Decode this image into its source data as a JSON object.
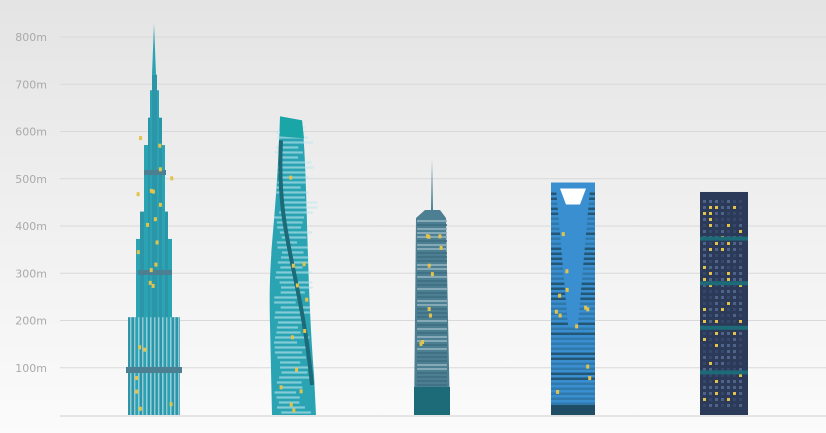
{
  "chart_data": {
    "type": "bar",
    "title": "",
    "xlabel": "",
    "ylabel": "",
    "ylim": [
      0,
      800
    ],
    "y_ticks": [
      {
        "value": 100,
        "label": "100m"
      },
      {
        "value": 200,
        "label": "200m"
      },
      {
        "value": 300,
        "label": "300m"
      },
      {
        "value": 400,
        "label": "400m"
      },
      {
        "value": 500,
        "label": "500m"
      },
      {
        "value": 600,
        "label": "600m"
      },
      {
        "value": 700,
        "label": "700m"
      },
      {
        "value": 800,
        "label": "800m"
      }
    ],
    "grid": true,
    "categories": [
      "",
      "",
      "",
      "",
      ""
    ],
    "values": [
      828,
      632,
      541,
      492,
      472
    ],
    "colors": {
      "teal": "#2aa3b3",
      "dark_teal": "#1d6a78",
      "slate": "#4d7f93",
      "blue": "#3a8fd0",
      "navy": "#2b3a58",
      "accent_yellow": "#e3c34a",
      "gridline": "#d9d9d9"
    },
    "marks": [
      "tapered-spire-tower",
      "twisting-tower",
      "spire-tower",
      "bottle-opener-tower",
      "block-tower"
    ]
  }
}
